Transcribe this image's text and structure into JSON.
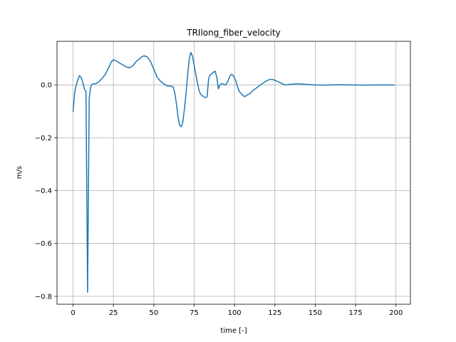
{
  "chart_data": {
    "type": "line",
    "title": "TRIlong_fiber_velocity",
    "xlabel": "time [-]",
    "ylabel": "m/s",
    "xlim": [
      -9.95,
      208.95
    ],
    "ylim": [
      -0.83,
      0.165
    ],
    "xticks": [
      0,
      25,
      50,
      75,
      100,
      125,
      150,
      175,
      200
    ],
    "xtick_labels": [
      "0",
      "25",
      "50",
      "75",
      "100",
      "125",
      "150",
      "175",
      "200"
    ],
    "yticks": [
      -0.8,
      -0.6,
      -0.4,
      -0.2,
      0.0
    ],
    "ytick_labels": [
      "−0.8",
      "−0.6",
      "−0.4",
      "−0.2",
      "0.0"
    ],
    "grid": true,
    "line_color": "#1f77b4",
    "series": [
      {
        "x": [
          0,
          1,
          2,
          3,
          4,
          5,
          6,
          7,
          8,
          9,
          10,
          11,
          12,
          13,
          14,
          16,
          18,
          20,
          22,
          24,
          25,
          27,
          29,
          31,
          33,
          35,
          37,
          39,
          41,
          43,
          44,
          46,
          48,
          50,
          52,
          54,
          56,
          58,
          60,
          61,
          62,
          63,
          64,
          65,
          66,
          67,
          68,
          69,
          70,
          71,
          72,
          73,
          74,
          75,
          76,
          77,
          78,
          79,
          80,
          81,
          82,
          83,
          84,
          85,
          86,
          87,
          88,
          89,
          90,
          91,
          92,
          93,
          94,
          95,
          96,
          97,
          98,
          99,
          100,
          101,
          102,
          103,
          104,
          105,
          106,
          107,
          108,
          109,
          110,
          112,
          114,
          116,
          118,
          120,
          122,
          124,
          126,
          128,
          130,
          132,
          134,
          136,
          138,
          140,
          145,
          150,
          155,
          160,
          165,
          170,
          175,
          180,
          185,
          190,
          195,
          199
        ],
        "y": [
          -0.1,
          -0.03,
          0.0,
          0.02,
          0.035,
          0.028,
          0.01,
          -0.015,
          -0.025,
          -0.785,
          -0.05,
          -0.005,
          0.003,
          0.005,
          0.004,
          0.012,
          0.025,
          0.04,
          0.065,
          0.09,
          0.095,
          0.09,
          0.082,
          0.075,
          0.068,
          0.065,
          0.072,
          0.088,
          0.098,
          0.108,
          0.11,
          0.106,
          0.088,
          0.06,
          0.03,
          0.015,
          0.005,
          -0.003,
          -0.005,
          -0.005,
          -0.008,
          -0.03,
          -0.07,
          -0.12,
          -0.152,
          -0.158,
          -0.14,
          -0.09,
          -0.03,
          0.04,
          0.1,
          0.123,
          0.108,
          0.075,
          0.04,
          0.01,
          -0.02,
          -0.035,
          -0.04,
          -0.045,
          -0.048,
          -0.045,
          0.025,
          0.038,
          0.043,
          0.048,
          0.052,
          0.03,
          -0.015,
          0.0,
          0.005,
          0.003,
          0.0,
          0.004,
          0.015,
          0.032,
          0.04,
          0.037,
          0.027,
          0.012,
          -0.01,
          -0.025,
          -0.032,
          -0.038,
          -0.044,
          -0.042,
          -0.037,
          -0.035,
          -0.03,
          -0.018,
          -0.01,
          0.0,
          0.008,
          0.016,
          0.021,
          0.02,
          0.015,
          0.009,
          0.003,
          0.0,
          0.002,
          0.003,
          0.004,
          0.004,
          0.002,
          0.0,
          -0.001,
          0.0,
          0.001,
          0.0,
          0.0,
          -0.001,
          0.0,
          0.0,
          0.0,
          0.0
        ]
      }
    ]
  }
}
